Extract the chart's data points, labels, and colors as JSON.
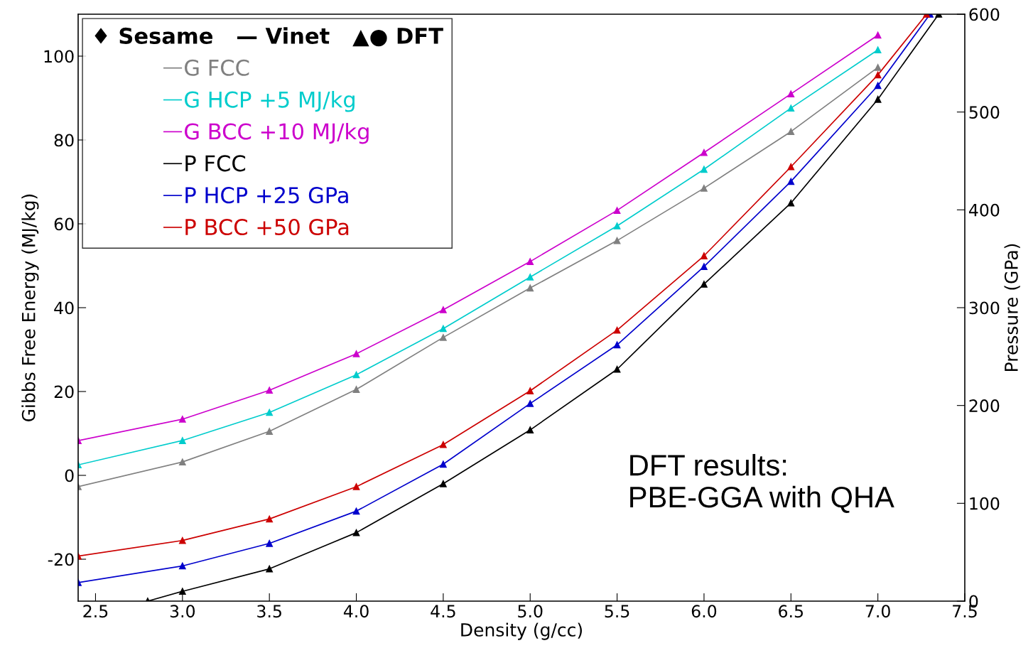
{
  "chart_data": {
    "type": "line",
    "xlabel": "Density (g/cc)",
    "ylabel": "Gibbs Free Energy (MJ/kg)",
    "y2label": "Pressure (GPa)",
    "legend_title": "♦ Sesame   — Vinet   ▲● DFT",
    "legend": "top left",
    "marker": "triangle",
    "line_style": "solid",
    "grid": false,
    "x": [
      2.4,
      3.0,
      3.5,
      4.0,
      4.5,
      5.0,
      5.5,
      6.0,
      6.5,
      7.0
    ],
    "xlim": [
      2.4,
      7.5
    ],
    "xticks": [
      2.5,
      {
        "value": 3,
        "label": "3.0"
      },
      3.5,
      {
        "value": 4,
        "label": "4.0"
      },
      4.5,
      {
        "value": 5,
        "label": "5.0"
      },
      5.5,
      {
        "value": 6,
        "label": "6.0"
      },
      6.5,
      {
        "value": 7,
        "label": "7.0"
      },
      7.5
    ],
    "ylim": [
      -30,
      110
    ],
    "yticks": [
      -20,
      0,
      20,
      40,
      60,
      80,
      100
    ],
    "y2lim": [
      0,
      600
    ],
    "y2ticks": [
      0,
      100,
      200,
      300,
      400,
      500,
      600
    ],
    "series": [
      {
        "name": "G FCC",
        "color": "#808080",
        "values": [
          -2.7,
          3.2,
          10.5,
          20.5,
          32.9,
          44.7,
          56,
          68.5,
          82,
          97.3
        ]
      },
      {
        "name": "G HCP +5 MJ/kg",
        "color": "#00cccc",
        "values": [
          2.5,
          8.3,
          15,
          24,
          35,
          47.3,
          59.5,
          73,
          87.6,
          101.5
        ]
      },
      {
        "name": "G BCC +10 MJ/kg",
        "color": "#cc00cc",
        "values": [
          8.3,
          13.4,
          20.3,
          29,
          39.5,
          51,
          63.2,
          77,
          91,
          105
        ]
      },
      {
        "name": "P FCC",
        "color": "#000000",
        "axis": "y2",
        "x": [
          2.8,
          3.0,
          3.5,
          4.0,
          4.5,
          5.0,
          5.5,
          6.0,
          6.5,
          7.0,
          7.35
        ],
        "values": [
          0,
          10,
          33,
          70,
          120,
          175,
          237,
          324,
          407,
          513,
          600
        ]
      },
      {
        "name": "P HCP +25 GPa",
        "color": "#0000cc",
        "axis": "y2",
        "x": [
          2.4,
          3.0,
          3.5,
          4.0,
          4.5,
          5.0,
          5.5,
          6.0,
          6.5,
          7.0,
          7.3
        ],
        "values": [
          19,
          36,
          59,
          92,
          140,
          202,
          262,
          342,
          429,
          527,
          600
        ]
      },
      {
        "name": "P BCC +50 GPa",
        "color": "#cc0000",
        "axis": "y2",
        "x": [
          2.4,
          3.0,
          3.5,
          4.0,
          4.5,
          5.0,
          5.5,
          6.0,
          6.5,
          7.0,
          7.28
        ],
        "values": [
          46,
          62,
          84,
          117,
          160,
          215,
          277,
          353,
          444,
          538,
          600
        ]
      }
    ],
    "annotations": [
      "DFT results:\nPBE-GGA with QHA"
    ]
  }
}
